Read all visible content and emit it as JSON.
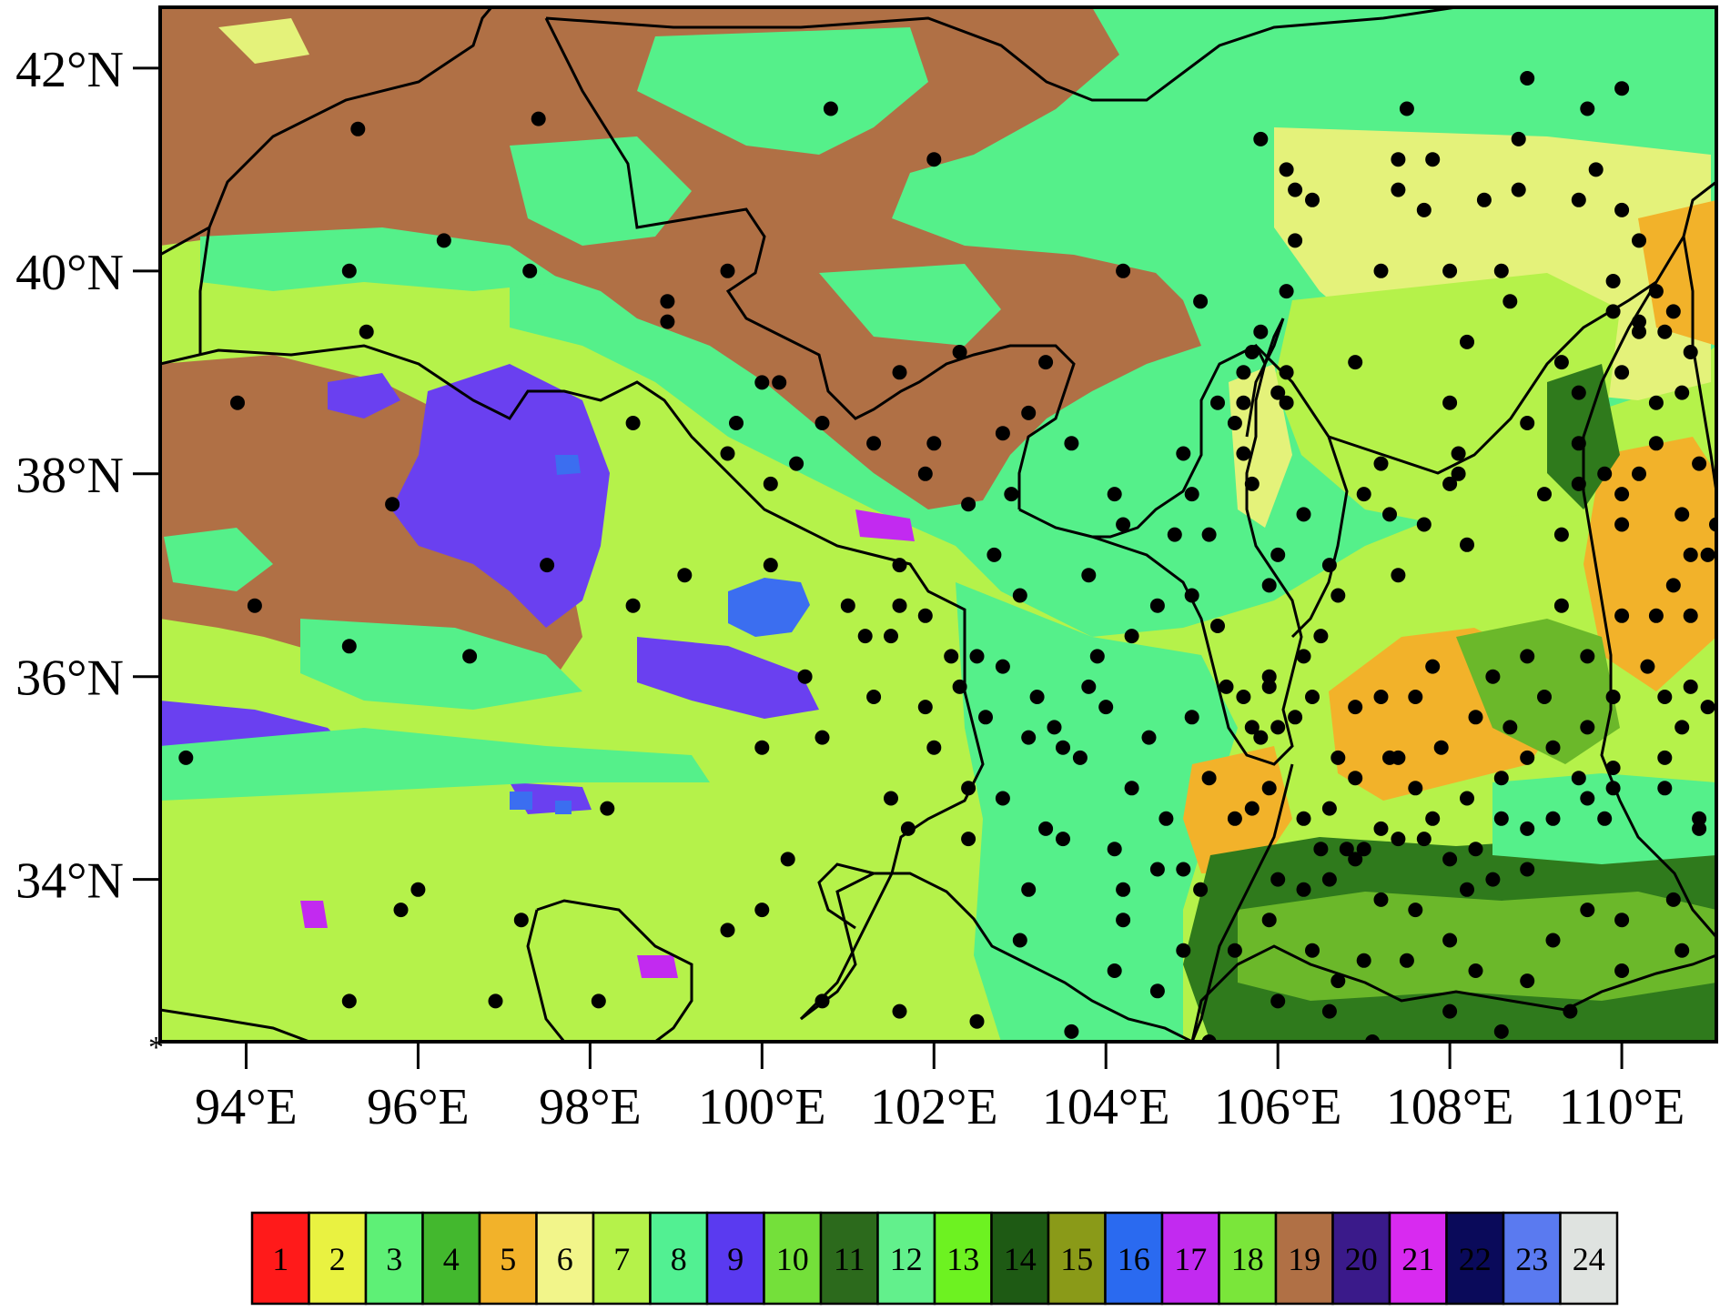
{
  "map": {
    "lat_ticks": [
      {
        "value": 42,
        "label": "42°N"
      },
      {
        "value": 40,
        "label": "40°N"
      },
      {
        "value": 38,
        "label": "38°N"
      },
      {
        "value": 36,
        "label": "36°N"
      },
      {
        "value": 34,
        "label": "34°N"
      }
    ],
    "lon_ticks": [
      {
        "value": 94,
        "label": "94°E"
      },
      {
        "value": 96,
        "label": "96°E"
      },
      {
        "value": 98,
        "label": "98°E"
      },
      {
        "value": 100,
        "label": "100°E"
      },
      {
        "value": 102,
        "label": "102°E"
      },
      {
        "value": 104,
        "label": "104°E"
      },
      {
        "value": 106,
        "label": "106°E"
      },
      {
        "value": 108,
        "label": "108°E"
      },
      {
        "value": 110,
        "label": "110°E"
      }
    ],
    "lon_range": [
      93,
      111.1
    ],
    "lat_range": [
      32.4,
      42.6
    ],
    "corner_marker": "*",
    "land_cover_colors": {
      "background": "#b5f24a",
      "barren": "#b07045",
      "grass": "#55f08a",
      "shrub": "#e4f27a",
      "water_lake": "#3b6ef0",
      "alpine_purple": "#6a40f0",
      "crop_orange": "#f2b22a",
      "forest_dark": "#2f7a1c",
      "forest_mid": "#6bb82a"
    }
  },
  "legend": {
    "classes": [
      {
        "id": "1",
        "color": "#ff1a1a",
        "text_color": "#000000"
      },
      {
        "id": "2",
        "color": "#e9f241",
        "text_color": "#000000"
      },
      {
        "id": "3",
        "color": "#5ef076",
        "text_color": "#000000"
      },
      {
        "id": "4",
        "color": "#43b82e",
        "text_color": "#000000"
      },
      {
        "id": "5",
        "color": "#f2b22a",
        "text_color": "#000000"
      },
      {
        "id": "6",
        "color": "#f2f58a",
        "text_color": "#000000"
      },
      {
        "id": "7",
        "color": "#b5f24a",
        "text_color": "#000000"
      },
      {
        "id": "8",
        "color": "#52f092",
        "text_color": "#000000"
      },
      {
        "id": "9",
        "color": "#5a3af0",
        "text_color": "#000000"
      },
      {
        "id": "10",
        "color": "#74e03a",
        "text_color": "#000000"
      },
      {
        "id": "11",
        "color": "#2c6a1c",
        "text_color": "#000000"
      },
      {
        "id": "12",
        "color": "#62f08c",
        "text_color": "#000000"
      },
      {
        "id": "13",
        "color": "#6df221",
        "text_color": "#000000"
      },
      {
        "id": "14",
        "color": "#1e5a14",
        "text_color": "#000000"
      },
      {
        "id": "15",
        "color": "#8a9a18",
        "text_color": "#000000"
      },
      {
        "id": "16",
        "color": "#2a6af0",
        "text_color": "#000000"
      },
      {
        "id": "17",
        "color": "#c22af0",
        "text_color": "#000000"
      },
      {
        "id": "18",
        "color": "#7ae63a",
        "text_color": "#000000"
      },
      {
        "id": "19",
        "color": "#b07045",
        "text_color": "#000000"
      },
      {
        "id": "20",
        "color": "#3a1a8a",
        "text_color": "#000000"
      },
      {
        "id": "21",
        "color": "#d82af0",
        "text_color": "#000000"
      },
      {
        "id": "22",
        "color": "#0a0a5a",
        "text_color": "#000000"
      },
      {
        "id": "23",
        "color": "#5a7af0",
        "text_color": "#000000"
      },
      {
        "id": "24",
        "color": "#dfe3e0",
        "text_color": "#000000"
      }
    ]
  },
  "stations": [
    [
      93.3,
      35.2
    ],
    [
      93.9,
      38.7
    ],
    [
      94.1,
      36.7
    ],
    [
      95.2,
      40.0
    ],
    [
      95.3,
      41.4
    ],
    [
      95.4,
      39.4
    ],
    [
      96.3,
      40.3
    ],
    [
      95.2,
      36.3
    ],
    [
      95.7,
      37.7
    ],
    [
      96.6,
      36.2
    ],
    [
      97.4,
      41.5
    ],
    [
      97.3,
      40.0
    ],
    [
      97.5,
      37.1
    ],
    [
      98.5,
      38.5
    ],
    [
      98.5,
      36.7
    ],
    [
      98.9,
      39.5
    ],
    [
      98.9,
      39.7
    ],
    [
      99.1,
      37.0
    ],
    [
      99.6,
      40.0
    ],
    [
      99.7,
      38.5
    ],
    [
      99.6,
      38.2
    ],
    [
      100.0,
      38.9
    ],
    [
      100.2,
      38.9
    ],
    [
      100.4,
      38.1
    ],
    [
      100.7,
      38.5
    ],
    [
      100.8,
      41.6
    ],
    [
      100.1,
      37.9
    ],
    [
      100.1,
      37.1
    ],
    [
      101.0,
      36.7
    ],
    [
      101.2,
      36.4
    ],
    [
      101.5,
      36.4
    ],
    [
      101.3,
      35.8
    ],
    [
      100.5,
      36.0
    ],
    [
      100.7,
      35.4
    ],
    [
      100.0,
      35.3
    ],
    [
      102.0,
      41.1
    ],
    [
      101.6,
      39.0
    ],
    [
      102.0,
      38.3
    ],
    [
      101.9,
      38.0
    ],
    [
      102.4,
      37.7
    ],
    [
      102.7,
      37.2
    ],
    [
      102.8,
      38.4
    ],
    [
      103.3,
      39.1
    ],
    [
      101.6,
      37.1
    ],
    [
      101.6,
      36.7
    ],
    [
      101.9,
      36.6
    ],
    [
      102.2,
      36.2
    ],
    [
      102.5,
      36.2
    ],
    [
      102.8,
      36.1
    ],
    [
      101.9,
      35.7
    ],
    [
      102.3,
      35.9
    ],
    [
      102.6,
      35.6
    ],
    [
      102.0,
      35.3
    ],
    [
      103.0,
      36.8
    ],
    [
      103.2,
      35.8
    ],
    [
      103.4,
      35.5
    ],
    [
      103.5,
      35.3
    ],
    [
      103.1,
      35.4
    ],
    [
      103.7,
      35.2
    ],
    [
      103.8,
      35.9
    ],
    [
      103.9,
      36.2
    ],
    [
      104.3,
      36.4
    ],
    [
      104.0,
      35.7
    ],
    [
      104.5,
      35.4
    ],
    [
      104.3,
      34.9
    ],
    [
      104.7,
      34.6
    ],
    [
      104.1,
      34.3
    ],
    [
      103.3,
      34.5
    ],
    [
      103.5,
      34.4
    ],
    [
      102.4,
      34.4
    ],
    [
      102.4,
      34.9
    ],
    [
      102.8,
      34.8
    ],
    [
      101.7,
      34.5
    ],
    [
      101.5,
      34.8
    ],
    [
      100.3,
      34.2
    ],
    [
      100.0,
      33.7
    ],
    [
      99.6,
      33.5
    ],
    [
      98.2,
      34.7
    ],
    [
      97.2,
      33.6
    ],
    [
      96.0,
      33.9
    ],
    [
      95.8,
      33.7
    ],
    [
      95.2,
      32.8
    ],
    [
      96.9,
      32.8
    ],
    [
      98.1,
      32.8
    ],
    [
      100.7,
      32.8
    ],
    [
      101.6,
      32.7
    ],
    [
      102.5,
      32.6
    ],
    [
      103.0,
      33.4
    ],
    [
      103.1,
      33.9
    ],
    [
      103.6,
      32.5
    ],
    [
      104.2,
      33.6
    ],
    [
      104.2,
      33.9
    ],
    [
      104.1,
      33.1
    ],
    [
      104.6,
      32.9
    ],
    [
      105.2,
      32.4
    ],
    [
      104.9,
      33.3
    ],
    [
      105.1,
      33.9
    ],
    [
      104.9,
      34.1
    ],
    [
      105.5,
      34.6
    ],
    [
      105.2,
      35.0
    ],
    [
      105.0,
      35.6
    ],
    [
      105.0,
      36.8
    ],
    [
      105.3,
      36.5
    ],
    [
      105.2,
      37.4
    ],
    [
      104.8,
      37.4
    ],
    [
      104.2,
      37.5
    ],
    [
      103.8,
      37.0
    ],
    [
      105.9,
      36.9
    ],
    [
      106.0,
      37.2
    ],
    [
      105.7,
      37.9
    ],
    [
      105.6,
      38.2
    ],
    [
      105.6,
      38.7
    ],
    [
      105.3,
      38.7
    ],
    [
      105.5,
      38.5
    ],
    [
      105.8,
      39.4
    ],
    [
      106.0,
      38.8
    ],
    [
      106.1,
      38.7
    ],
    [
      106.1,
      39.0
    ],
    [
      106.1,
      39.8
    ],
    [
      106.2,
      40.3
    ],
    [
      106.2,
      40.8
    ],
    [
      106.4,
      40.7
    ],
    [
      106.1,
      41.0
    ],
    [
      105.8,
      41.3
    ],
    [
      104.2,
      40.0
    ],
    [
      105.1,
      39.7
    ],
    [
      107.4,
      40.8
    ],
    [
      107.5,
      41.6
    ],
    [
      107.7,
      40.6
    ],
    [
      107.8,
      41.1
    ],
    [
      107.4,
      41.1
    ],
    [
      108.0,
      40.0
    ],
    [
      108.4,
      40.7
    ],
    [
      108.9,
      41.9
    ],
    [
      108.8,
      40.8
    ],
    [
      108.8,
      41.3
    ],
    [
      109.5,
      40.7
    ],
    [
      109.7,
      41.0
    ],
    [
      109.6,
      41.6
    ],
    [
      110.0,
      41.8
    ],
    [
      110.0,
      40.6
    ],
    [
      110.2,
      40.3
    ],
    [
      109.3,
      39.1
    ],
    [
      108.7,
      39.7
    ],
    [
      108.6,
      40.0
    ],
    [
      107.2,
      40.0
    ],
    [
      106.9,
      39.1
    ],
    [
      107.2,
      38.1
    ],
    [
      107.3,
      37.6
    ],
    [
      107.0,
      37.8
    ],
    [
      106.6,
      37.1
    ],
    [
      106.5,
      36.4
    ],
    [
      106.4,
      35.8
    ],
    [
      106.2,
      35.6
    ],
    [
      106.0,
      35.5
    ],
    [
      105.8,
      35.4
    ],
    [
      105.7,
      35.5
    ],
    [
      105.6,
      35.8
    ],
    [
      105.9,
      35.9
    ],
    [
      106.7,
      35.2
    ],
    [
      106.9,
      35.7
    ],
    [
      107.2,
      35.8
    ],
    [
      107.4,
      35.2
    ],
    [
      107.6,
      35.8
    ],
    [
      107.8,
      36.1
    ],
    [
      107.4,
      37.0
    ],
    [
      107.7,
      37.5
    ],
    [
      108.2,
      37.3
    ],
    [
      108.0,
      37.9
    ],
    [
      108.1,
      38.0
    ],
    [
      108.1,
      38.2
    ],
    [
      108.0,
      38.7
    ],
    [
      108.2,
      39.3
    ],
    [
      108.9,
      38.5
    ],
    [
      109.1,
      37.8
    ],
    [
      109.3,
      37.4
    ],
    [
      109.5,
      37.9
    ],
    [
      109.5,
      38.3
    ],
    [
      109.8,
      38.0
    ],
    [
      110.0,
      37.8
    ],
    [
      110.0,
      37.5
    ],
    [
      110.2,
      38.0
    ],
    [
      110.4,
      38.3
    ],
    [
      110.4,
      38.7
    ],
    [
      110.7,
      38.8
    ],
    [
      110.8,
      39.2
    ],
    [
      110.5,
      39.4
    ],
    [
      110.6,
      39.6
    ],
    [
      110.4,
      39.8
    ],
    [
      110.2,
      39.5
    ],
    [
      109.9,
      39.6
    ],
    [
      109.9,
      39.9
    ],
    [
      109.5,
      38.8
    ],
    [
      110.0,
      39.0
    ],
    [
      110.2,
      39.4
    ],
    [
      110.7,
      37.6
    ],
    [
      110.8,
      37.2
    ],
    [
      110.6,
      36.9
    ],
    [
      110.4,
      36.6
    ],
    [
      110.0,
      36.6
    ],
    [
      110.8,
      36.6
    ],
    [
      110.3,
      36.1
    ],
    [
      109.9,
      35.8
    ],
    [
      110.5,
      35.8
    ],
    [
      110.8,
      35.9
    ],
    [
      111.0,
      35.7
    ],
    [
      110.7,
      35.5
    ],
    [
      109.6,
      35.5
    ],
    [
      109.9,
      35.1
    ],
    [
      110.5,
      35.2
    ],
    [
      110.9,
      34.5
    ],
    [
      110.5,
      34.9
    ],
    [
      109.9,
      34.9
    ],
    [
      109.6,
      34.8
    ],
    [
      109.8,
      34.6
    ],
    [
      109.2,
      34.6
    ],
    [
      108.9,
      34.5
    ],
    [
      108.6,
      34.6
    ],
    [
      108.3,
      34.3
    ],
    [
      108.0,
      34.2
    ],
    [
      107.7,
      34.4
    ],
    [
      107.4,
      34.4
    ],
    [
      107.2,
      34.5
    ],
    [
      107.0,
      34.3
    ],
    [
      106.8,
      34.3
    ],
    [
      106.5,
      34.3
    ],
    [
      106.6,
      34.0
    ],
    [
      106.3,
      33.9
    ],
    [
      106.0,
      34.0
    ],
    [
      105.9,
      33.6
    ],
    [
      106.4,
      33.3
    ],
    [
      106.7,
      33.0
    ],
    [
      107.0,
      33.2
    ],
    [
      107.5,
      33.2
    ],
    [
      108.0,
      33.4
    ],
    [
      108.3,
      33.1
    ],
    [
      108.9,
      33.0
    ],
    [
      109.2,
      33.4
    ],
    [
      109.6,
      33.7
    ],
    [
      110.0,
      33.6
    ],
    [
      110.6,
      33.8
    ],
    [
      110.7,
      33.3
    ],
    [
      110.0,
      33.1
    ],
    [
      109.4,
      32.7
    ],
    [
      108.6,
      32.5
    ],
    [
      108.0,
      32.7
    ],
    [
      107.6,
      32.3
    ],
    [
      107.1,
      32.4
    ],
    [
      106.6,
      32.7
    ],
    [
      106.0,
      32.8
    ],
    [
      105.5,
      33.3
    ],
    [
      104.6,
      34.1
    ],
    [
      107.8,
      34.6
    ],
    [
      108.2,
      34.8
    ],
    [
      108.6,
      35.0
    ],
    [
      108.9,
      35.2
    ],
    [
      109.5,
      35.0
    ],
    [
      109.2,
      35.3
    ],
    [
      108.7,
      35.5
    ],
    [
      108.3,
      35.6
    ],
    [
      107.9,
      35.3
    ],
    [
      107.6,
      34.9
    ],
    [
      107.3,
      35.2
    ],
    [
      106.9,
      35.0
    ],
    [
      106.6,
      34.7
    ],
    [
      106.3,
      34.6
    ],
    [
      105.9,
      34.9
    ],
    [
      105.7,
      34.7
    ],
    [
      108.5,
      36.0
    ],
    [
      108.9,
      36.2
    ],
    [
      109.3,
      36.7
    ],
    [
      109.6,
      36.2
    ],
    [
      109.1,
      35.8
    ],
    [
      108.9,
      34.1
    ],
    [
      108.5,
      34.0
    ],
    [
      108.2,
      33.9
    ],
    [
      107.6,
      33.7
    ],
    [
      107.2,
      33.8
    ],
    [
      106.9,
      34.2
    ],
    [
      103.1,
      38.6
    ],
    [
      102.3,
      39.2
    ],
    [
      104.9,
      38.2
    ],
    [
      106.3,
      37.6
    ],
    [
      106.7,
      36.8
    ],
    [
      106.3,
      36.2
    ],
    [
      105.9,
      36.0
    ],
    [
      105.4,
      35.9
    ],
    [
      102.9,
      37.8
    ],
    [
      103.6,
      38.3
    ],
    [
      104.1,
      37.8
    ],
    [
      104.6,
      36.7
    ],
    [
      101.3,
      38.3
    ],
    [
      105.0,
      37.8
    ],
    [
      105.6,
      39.0
    ],
    [
      105.7,
      39.2
    ],
    [
      110.9,
      34.6
    ],
    [
      111.0,
      37.2
    ],
    [
      110.9,
      38.1
    ],
    [
      111.1,
      37.5
    ]
  ]
}
